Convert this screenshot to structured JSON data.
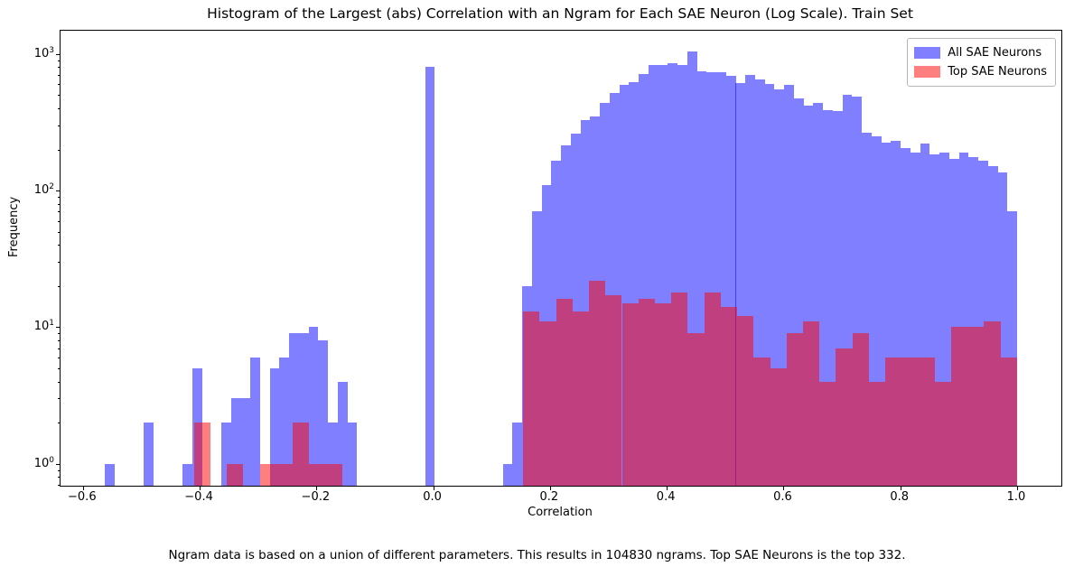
{
  "title": "Histogram of the Largest (abs) Correlation with an Ngram for Each SAE Neuron (Log Scale). Train Set",
  "footer": "Ngram data is based on a union of different parameters. This results in 104830 ngrams. Top SAE Neurons is the top 332.",
  "chart_data": {
    "type": "bar",
    "subtype": "overlaid-histogram",
    "title": "Histogram of the Largest (abs) Correlation with an Ngram for Each SAE Neuron (Log Scale). Train Set",
    "xlabel": "Correlation",
    "ylabel": "Frequency",
    "yscale": "log",
    "grid": false,
    "xlim": [
      -0.6384,
      1.0759
    ],
    "ylim": [
      0.69,
      1480
    ],
    "xticks": [
      {
        "v": -0.6,
        "label": "−0.6"
      },
      {
        "v": -0.4,
        "label": "−0.4"
      },
      {
        "v": -0.2,
        "label": "−0.2"
      },
      {
        "v": 0.0,
        "label": "0.0"
      },
      {
        "v": 0.2,
        "label": "0.2"
      },
      {
        "v": 0.4,
        "label": "0.4"
      },
      {
        "v": 0.6,
        "label": "0.6"
      },
      {
        "v": 0.8,
        "label": "0.8"
      },
      {
        "v": 1.0,
        "label": "1.0"
      }
    ],
    "yticks": [
      {
        "v": 1,
        "main": "10",
        "sup": "0"
      },
      {
        "v": 10,
        "main": "10",
        "sup": "1"
      },
      {
        "v": 100,
        "main": "10",
        "sup": "2"
      },
      {
        "v": 1000,
        "main": "10",
        "sup": "3"
      }
    ],
    "legend": {
      "position": "upper-right",
      "entries": [
        {
          "label": "All SAE Neurons",
          "swatch_color": "#7f7fff"
        },
        {
          "label": "Top SAE Neurons",
          "swatch_color": "#ff7f7f"
        }
      ]
    },
    "series": [
      {
        "name": "All SAE Neurons",
        "color": "rgba(0,0,255,0.5)",
        "bin_start": -0.5625,
        "bin_width": 0.016625,
        "counts": [
          1,
          0,
          0,
          0,
          2,
          0,
          0,
          0,
          1,
          5,
          0,
          0,
          2,
          3,
          3,
          6,
          0,
          5,
          6,
          9,
          9,
          10,
          8,
          2,
          4,
          2,
          0,
          0,
          0,
          0,
          0,
          0,
          0,
          800,
          0,
          0,
          0,
          0,
          0,
          0,
          0,
          1,
          2,
          20,
          70,
          110,
          165,
          215,
          260,
          330,
          350,
          440,
          520,
          590,
          625,
          710,
          830,
          830,
          860,
          830,
          1050,
          750,
          730,
          740,
          690,
          610,
          700,
          655,
          600,
          550,
          590,
          470,
          420,
          440,
          390,
          380,
          500,
          490,
          265,
          250,
          225,
          230,
          205,
          190,
          220,
          185,
          190,
          170,
          190,
          175,
          165,
          150,
          135,
          70
        ]
      },
      {
        "name": "Top SAE Neurons",
        "color": "rgba(255,0,0,0.5)",
        "bin_start": -0.41,
        "bin_width": 0.0282,
        "counts": [
          2,
          0,
          1,
          0,
          1,
          1,
          2,
          1,
          1,
          0,
          0,
          0,
          0,
          0,
          0,
          0,
          0,
          0,
          0,
          0,
          13,
          11,
          16,
          13,
          22,
          17,
          15,
          16,
          15,
          18,
          9,
          18,
          14,
          12,
          6,
          5,
          9,
          11,
          4,
          7,
          9,
          4,
          6,
          6,
          6,
          4,
          10,
          10,
          11,
          6
        ]
      }
    ]
  }
}
